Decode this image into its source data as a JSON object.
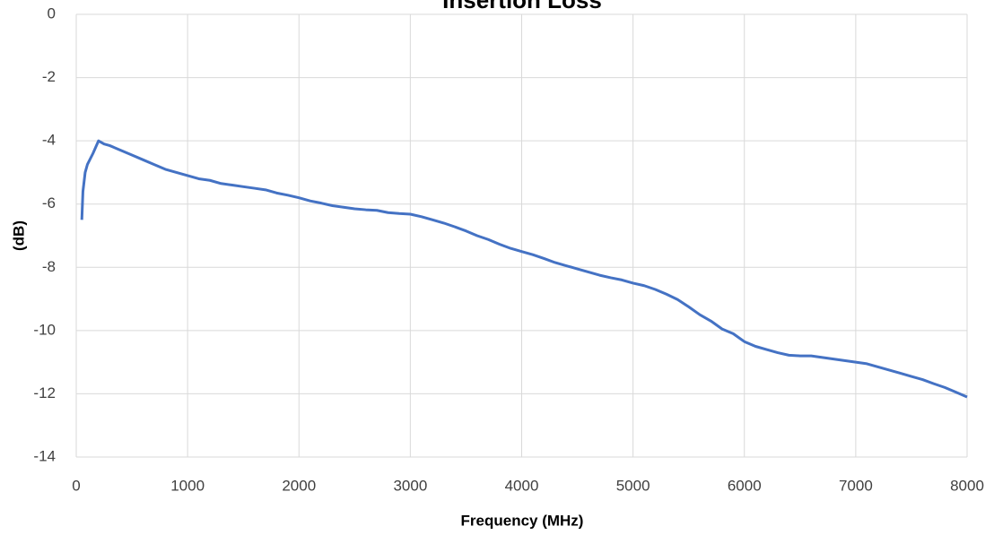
{
  "chart_data": {
    "type": "line",
    "title": "Insertion Loss",
    "x_label": "Frequency (MHz)",
    "y_label": "(dB)",
    "x": [
      50,
      60,
      80,
      100,
      150,
      200,
      250,
      300,
      400,
      500,
      600,
      700,
      800,
      900,
      1000,
      1100,
      1200,
      1300,
      1400,
      1500,
      1600,
      1700,
      1800,
      1900,
      2000,
      2100,
      2200,
      2300,
      2400,
      2500,
      2600,
      2700,
      2800,
      2900,
      3000,
      3100,
      3200,
      3300,
      3400,
      3500,
      3600,
      3700,
      3800,
      3900,
      4000,
      4100,
      4200,
      4300,
      4400,
      4500,
      4600,
      4700,
      4800,
      4900,
      5000,
      5100,
      5200,
      5300,
      5400,
      5500,
      5600,
      5700,
      5800,
      5900,
      6000,
      6100,
      6200,
      6300,
      6400,
      6500,
      6600,
      6700,
      6800,
      6900,
      7000,
      7100,
      7200,
      7300,
      7400,
      7500,
      7600,
      7700,
      7800,
      7900,
      8000
    ],
    "series": [
      {
        "name": "Insertion Loss",
        "color": "#4472c4",
        "values": [
          -6.5,
          -5.6,
          -5.0,
          -4.75,
          -4.4,
          -4.0,
          -4.1,
          -4.15,
          -4.3,
          -4.45,
          -4.6,
          -4.75,
          -4.9,
          -5.0,
          -5.1,
          -5.2,
          -5.25,
          -5.35,
          -5.4,
          -5.45,
          -5.5,
          -5.55,
          -5.65,
          -5.72,
          -5.8,
          -5.9,
          -5.97,
          -6.05,
          -6.1,
          -6.15,
          -6.18,
          -6.2,
          -6.27,
          -6.3,
          -6.32,
          -6.4,
          -6.5,
          -6.6,
          -6.72,
          -6.85,
          -7.0,
          -7.12,
          -7.27,
          -7.4,
          -7.5,
          -7.6,
          -7.72,
          -7.85,
          -7.95,
          -8.05,
          -8.15,
          -8.25,
          -8.33,
          -8.4,
          -8.5,
          -8.58,
          -8.7,
          -8.85,
          -9.02,
          -9.25,
          -9.5,
          -9.7,
          -9.95,
          -10.1,
          -10.35,
          -10.5,
          -10.6,
          -10.7,
          -10.78,
          -10.8,
          -10.8,
          -10.85,
          -10.9,
          -10.95,
          -11.0,
          -11.05,
          -11.15,
          -11.25,
          -11.35,
          -11.45,
          -11.55,
          -11.68,
          -11.8,
          -11.95,
          -12.1
        ]
      }
    ],
    "xlim": [
      0,
      8000
    ],
    "xticks": [
      0,
      1000,
      2000,
      3000,
      4000,
      5000,
      6000,
      7000,
      8000
    ],
    "ylim": [
      -14,
      0
    ],
    "yticks": [
      0,
      -2,
      -4,
      -6,
      -8,
      -10,
      -12,
      -14
    ],
    "grid": true
  }
}
